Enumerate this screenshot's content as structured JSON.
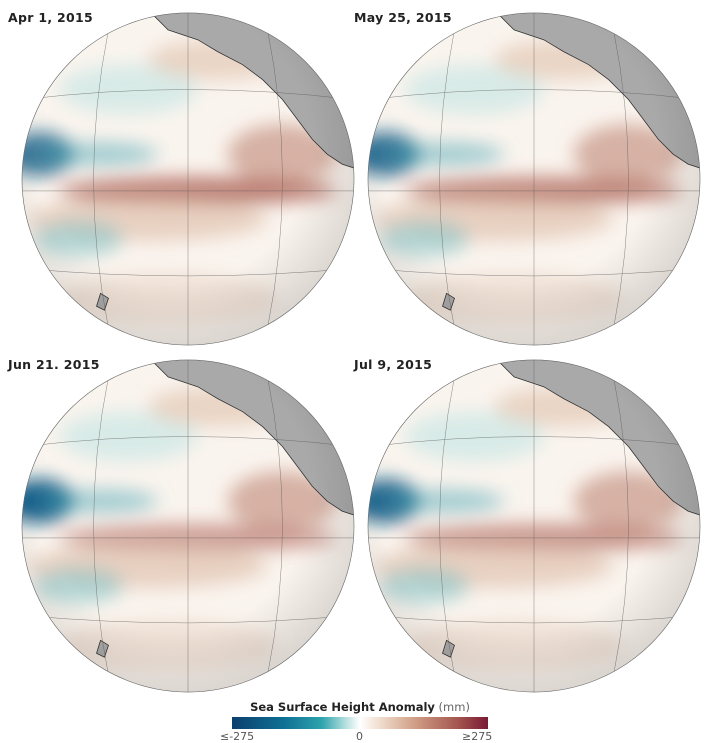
{
  "panels": [
    {
      "date": "Apr 1, 2015"
    },
    {
      "date": "May 25, 2015"
    },
    {
      "date": "Jun 21. 2015"
    },
    {
      "date": "Jul 9, 2015"
    }
  ],
  "legend": {
    "title": "Sea Surface Height Anomaly",
    "unit": "(mm)",
    "min_label": "≤-275",
    "mid_label": "0",
    "max_label": "≥275",
    "colors": {
      "low": "#0b3f6e",
      "mid": "#ffffff",
      "high": "#7a1a34",
      "land": "#a9a9a9"
    }
  }
}
